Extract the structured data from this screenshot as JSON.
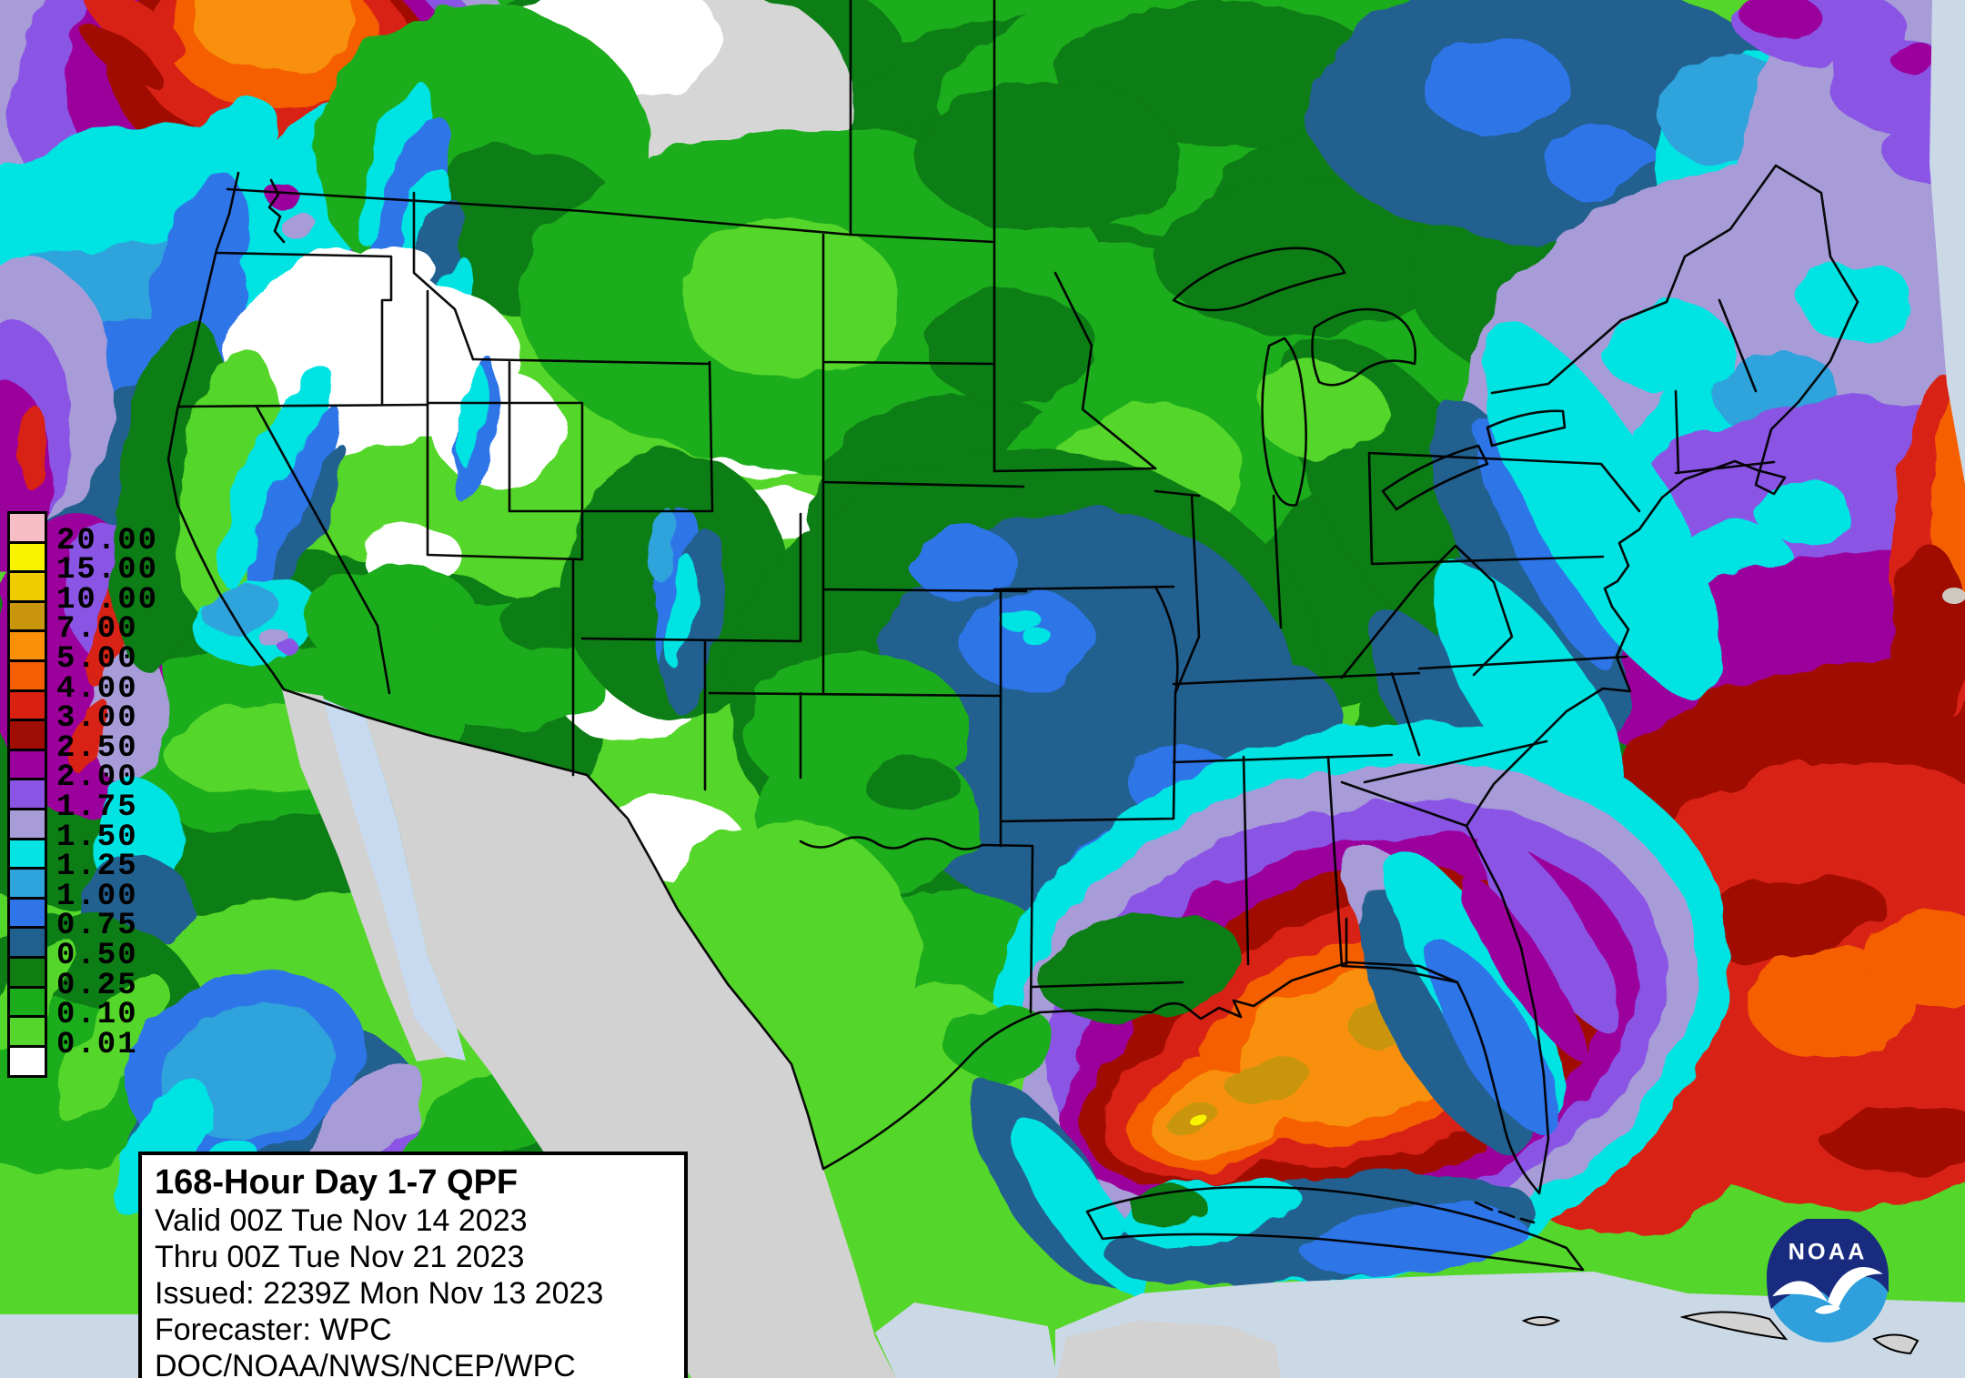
{
  "map": {
    "title_box": {
      "title": "168-Hour Day 1-7 QPF",
      "valid_line": "Valid 00Z Tue Nov 14 2023",
      "thru_line": "Thru 00Z Tue Nov 21 2023",
      "issued_line": "Issued: 2239Z Mon Nov 13 2023",
      "forecaster_line": "Forecaster: WPC",
      "agency_line": "DOC/NOAA/NWS/NCEP/WPC"
    },
    "legend": {
      "entries": [
        {
          "label": "20.00",
          "color": "#F6BDC6"
        },
        {
          "label": "15.00",
          "color": "#F8F400"
        },
        {
          "label": "10.00",
          "color": "#EFCC00"
        },
        {
          "label": "7.00",
          "color": "#C9950C"
        },
        {
          "label": "5.00",
          "color": "#F99007"
        },
        {
          "label": "4.00",
          "color": "#F55E03"
        },
        {
          "label": "3.00",
          "color": "#D92112"
        },
        {
          "label": "2.50",
          "color": "#A00D05"
        },
        {
          "label": "2.00",
          "color": "#9C009C"
        },
        {
          "label": "1.75",
          "color": "#8A55E5"
        },
        {
          "label": "1.50",
          "color": "#A89CD8"
        },
        {
          "label": "1.25",
          "color": "#06E3E3"
        },
        {
          "label": "1.00",
          "color": "#2FA3DC"
        },
        {
          "label": "0.75",
          "color": "#2F74E8"
        },
        {
          "label": "0.50",
          "color": "#20608F"
        },
        {
          "label": "0.25",
          "color": "#0F7D12"
        },
        {
          "label": "0.10",
          "color": "#1CAD1C"
        },
        {
          "label": "0.01",
          "color": "#55D62C"
        },
        {
          "label": "",
          "color": "#FFFFFF"
        }
      ]
    },
    "logo": {
      "text": "NOAA"
    },
    "colors": {
      "mexico_land": "#D2D2D2",
      "sea": "#CBD8E6",
      "gulf_of_california": "#C7DAF0"
    }
  }
}
